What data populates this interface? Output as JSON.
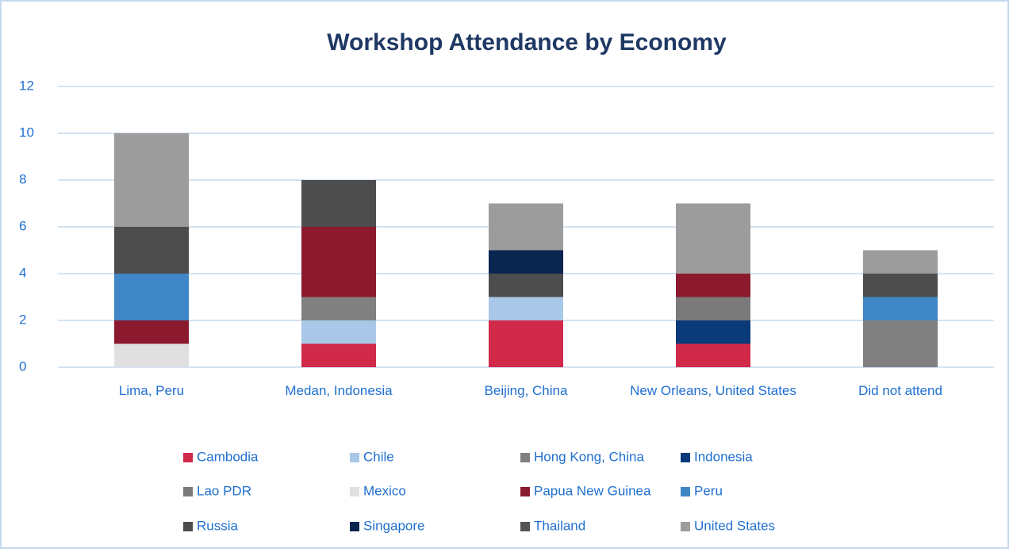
{
  "chart_data": {
    "type": "stacked_bar",
    "title": "Workshop Attendance by Economy",
    "categories": [
      "Lima, Peru",
      "Medan, Indonesia",
      "Beijing, China",
      "New Orleans, United States",
      "Did not attend"
    ],
    "series": [
      {
        "name": "Cambodia",
        "color": "#d0294a",
        "values": [
          0,
          1,
          2,
          1,
          0
        ]
      },
      {
        "name": "Chile",
        "color": "#a9c8e8",
        "values": [
          0,
          1,
          1,
          0,
          0
        ]
      },
      {
        "name": "Hong Kong, China",
        "color": "#808080",
        "values": [
          0,
          1,
          0,
          0,
          2
        ]
      },
      {
        "name": "Indonesia",
        "color": "#0b3a7a",
        "values": [
          0,
          0,
          0,
          1,
          0
        ]
      },
      {
        "name": "Lao PDR",
        "color": "#7a7a7a",
        "values": [
          0,
          0,
          0,
          1,
          0
        ]
      },
      {
        "name": "Mexico",
        "color": "#e0e0e0",
        "values": [
          1,
          0,
          0,
          0,
          0
        ]
      },
      {
        "name": "Papua New Guinea",
        "color": "#8b1a2e",
        "values": [
          1,
          3,
          0,
          1,
          0
        ]
      },
      {
        "name": "Peru",
        "color": "#3f86c6",
        "values": [
          2,
          0,
          0,
          0,
          1
        ]
      },
      {
        "name": "Russia",
        "color": "#4d4d4d",
        "values": [
          2,
          2,
          1,
          0,
          1
        ]
      },
      {
        "name": "Singapore",
        "color": "#0a2550",
        "values": [
          0,
          0,
          1,
          0,
          0
        ]
      },
      {
        "name": "Thailand",
        "color": "#555555",
        "values": [
          0,
          0,
          0,
          0,
          0
        ]
      },
      {
        "name": "United States",
        "color": "#9c9c9c",
        "values": [
          4,
          0,
          2,
          3,
          1
        ]
      }
    ],
    "ylim": [
      0,
      12
    ],
    "yticks": [
      0,
      2,
      4,
      6,
      8,
      10,
      12
    ],
    "grid": true
  }
}
